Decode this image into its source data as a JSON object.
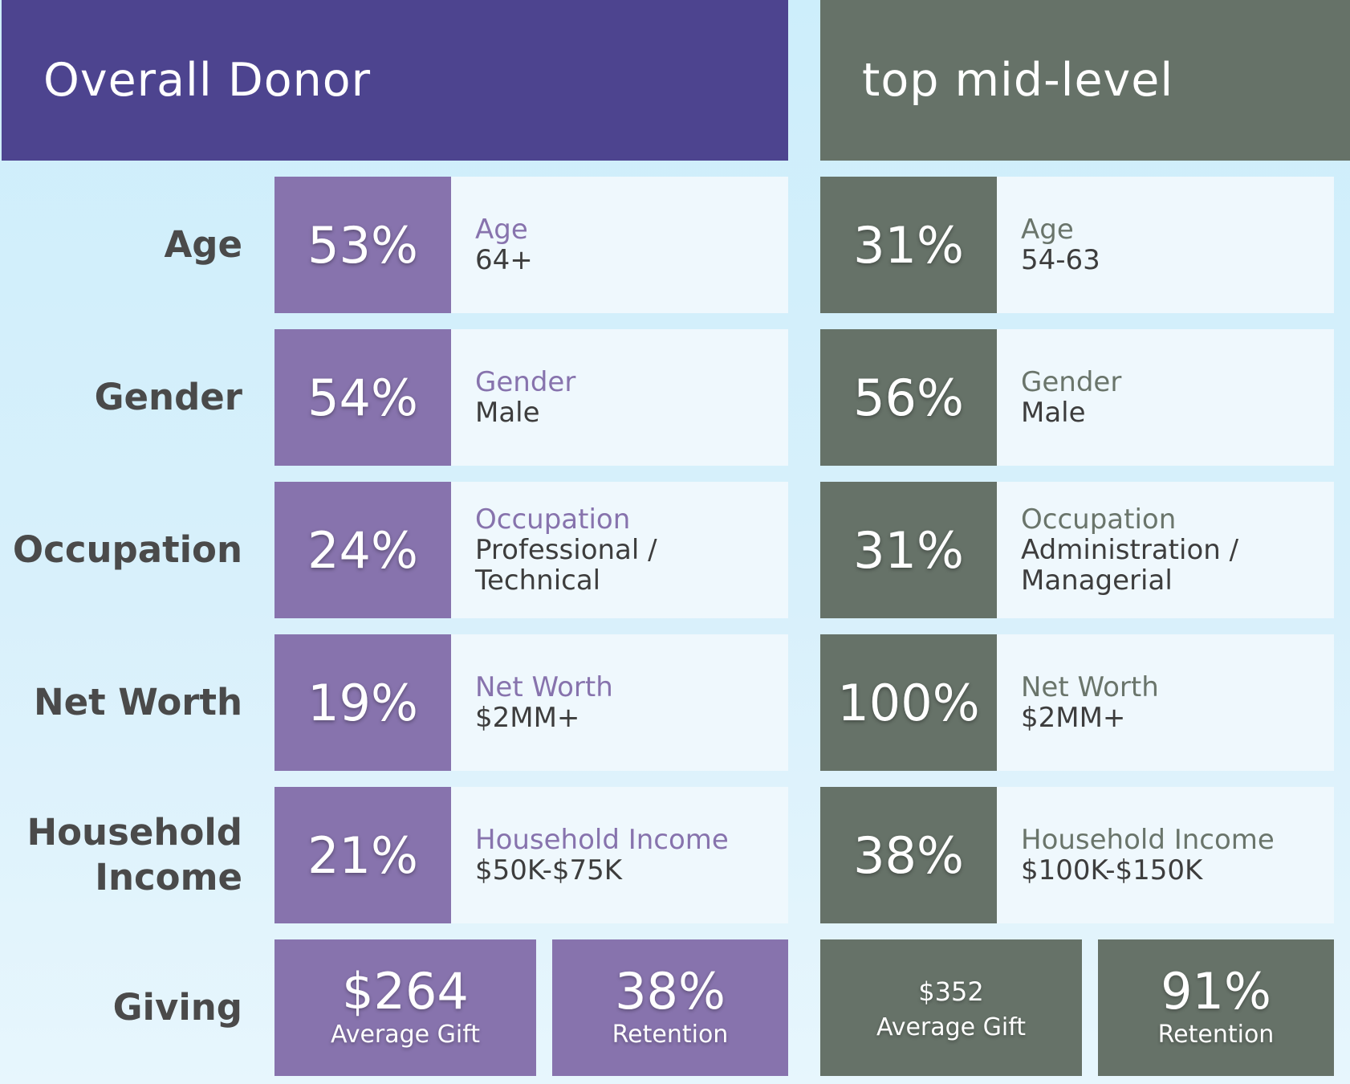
{
  "header": {
    "left_title": "Overall Donor",
    "right_title": "top mid-level"
  },
  "rows": [
    {
      "label": "Age",
      "label_lines": [
        "Age"
      ],
      "overall": {
        "pct": "53%",
        "key": "Age",
        "value": "64+"
      },
      "mid": {
        "pct": "31%",
        "key": "Age",
        "value": "54-63"
      }
    },
    {
      "label": "Gender",
      "label_lines": [
        "Gender"
      ],
      "overall": {
        "pct": "54%",
        "key": "Gender",
        "value": "Male"
      },
      "mid": {
        "pct": "56%",
        "key": "Gender",
        "value": "Male"
      }
    },
    {
      "label": "Occupation",
      "label_lines": [
        "Occupation"
      ],
      "overall": {
        "pct": "24%",
        "key": "Occupation",
        "value": "Professional / Technical"
      },
      "mid": {
        "pct": "31%",
        "key": "Occupation",
        "value_lines": [
          "Administration /",
          "Managerial"
        ]
      }
    },
    {
      "label": "Net Worth",
      "label_lines": [
        "Net Worth"
      ],
      "overall": {
        "pct": "19%",
        "key": "Net Worth",
        "value": "$2MM+"
      },
      "mid": {
        "pct": "100%",
        "key": "Net Worth",
        "value": "$2MM+"
      }
    },
    {
      "label": "Household Income",
      "label_lines": [
        "Household",
        "Income"
      ],
      "overall": {
        "pct": "21%",
        "key": "Household Income",
        "value": "$50K-$75K"
      },
      "mid": {
        "pct": "38%",
        "key": "Household Income",
        "value": "$100K-$150K"
      }
    }
  ],
  "giving": {
    "label": "Giving",
    "overall": {
      "avg_gift": "$264",
      "avg_gift_label": "Average Gift",
      "retention": "38%",
      "retention_label": "Retention"
    },
    "mid": {
      "avg_gift": "$352",
      "avg_gift_label": "Average Gift",
      "retention": "91%",
      "retention_label": "Retention"
    }
  },
  "colors": {
    "overall_header": "#4d448f",
    "overall_accent": "#8773ad",
    "mid_accent": "#667268",
    "card_bg": "#eff8fd",
    "label_text": "#4a4a4a"
  }
}
